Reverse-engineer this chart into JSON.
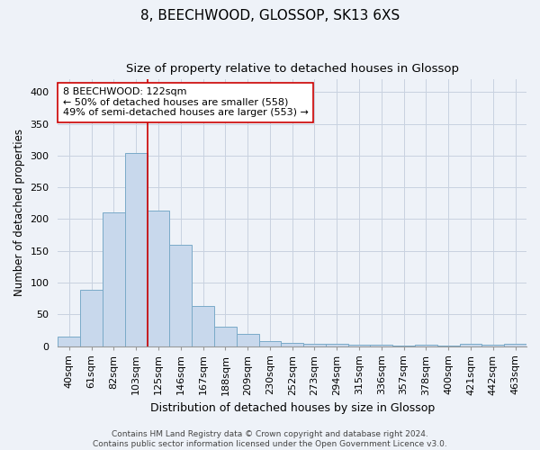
{
  "title": "8, BEECHWOOD, GLOSSOP, SK13 6XS",
  "subtitle": "Size of property relative to detached houses in Glossop",
  "xlabel": "Distribution of detached houses by size in Glossop",
  "ylabel": "Number of detached properties",
  "categories": [
    "40sqm",
    "61sqm",
    "82sqm",
    "103sqm",
    "125sqm",
    "146sqm",
    "167sqm",
    "188sqm",
    "209sqm",
    "230sqm",
    "252sqm",
    "273sqm",
    "294sqm",
    "315sqm",
    "336sqm",
    "357sqm",
    "378sqm",
    "400sqm",
    "421sqm",
    "442sqm",
    "463sqm"
  ],
  "values": [
    15,
    88,
    210,
    304,
    213,
    160,
    63,
    30,
    19,
    8,
    5,
    3,
    3,
    2,
    2,
    1,
    2,
    1,
    3,
    2,
    3
  ],
  "bar_color": "#c8d8ec",
  "bar_edge_color": "#7aaac8",
  "grid_color": "#c8d2e0",
  "background_color": "#eef2f8",
  "vline_x": 3.5,
  "vline_color": "#cc0000",
  "annotation_text": "8 BEECHWOOD: 122sqm\n← 50% of detached houses are smaller (558)\n49% of semi-detached houses are larger (553) →",
  "annotation_box_facecolor": "#ffffff",
  "annotation_box_edgecolor": "#cc0000",
  "ylim": [
    0,
    420
  ],
  "yticks": [
    0,
    50,
    100,
    150,
    200,
    250,
    300,
    350,
    400
  ],
  "footer_text": "Contains HM Land Registry data © Crown copyright and database right 2024.\nContains public sector information licensed under the Open Government Licence v3.0.",
  "title_fontsize": 11,
  "subtitle_fontsize": 9.5,
  "xlabel_fontsize": 9,
  "ylabel_fontsize": 8.5,
  "tick_fontsize": 8,
  "annotation_fontsize": 8,
  "footer_fontsize": 6.5
}
